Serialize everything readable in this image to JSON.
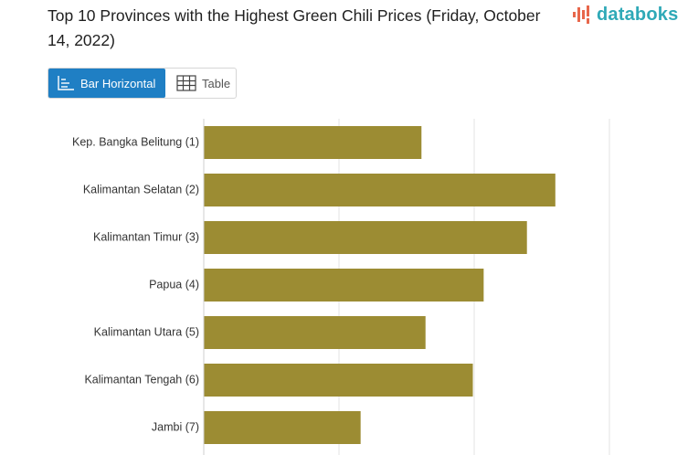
{
  "header": {
    "title": "Top 10 Provinces with the Highest Green Chili Prices (Friday, October 14, 2022)",
    "logo_text": "databoks",
    "logo_icon": "databoks-bars-icon",
    "logo_color": "#2fa9b7"
  },
  "view_toggle": {
    "bar_label": "Bar Horizontal",
    "table_label": "Table",
    "bar_icon": "bar-chart-icon",
    "table_icon": "table-grid-icon",
    "active": "bar",
    "active_color": "#1f7fc4"
  },
  "chart_data": {
    "type": "bar",
    "orientation": "horizontal",
    "categories": [
      "Kep. Bangka Belitung (1)",
      "Kalimantan Selatan (2)",
      "Kalimantan Timur (3)",
      "Papua (4)",
      "Kalimantan Utara (5)",
      "Kalimantan Tengah (6)",
      "Jambi (7)"
    ],
    "values": [
      80.5,
      130,
      119.5,
      103.5,
      82,
      99.5,
      58
    ],
    "xlim": [
      0,
      150
    ],
    "bar_color": "#9c8c33",
    "grid": true,
    "title": "Top 10 Provinces with the Highest Green Chili Prices (Friday, October 14, 2022)",
    "xlabel": "",
    "ylabel": ""
  }
}
